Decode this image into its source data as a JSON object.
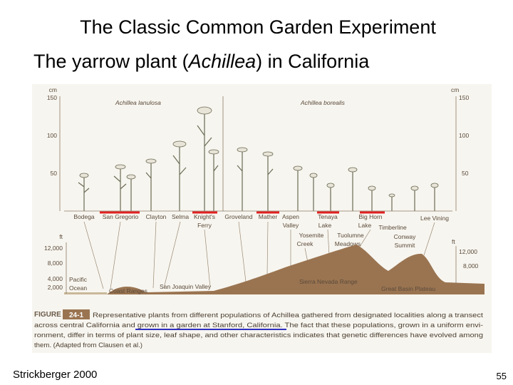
{
  "slide": {
    "title": "The Classic Common Garden Experiment",
    "subtitle": [
      "The yarrow plant (",
      "Achillea",
      ") in California"
    ],
    "figure": {
      "species": [
        "Achillea lanulosa",
        "Achillea borealis"
      ],
      "cm_axis_left": [
        "cm",
        "150",
        "100",
        "50"
      ],
      "cm_axis_right": [
        "cm",
        "150",
        "100",
        "50"
      ],
      "localities": [
        [
          "Bodega"
        ],
        [
          "San Gregorio"
        ],
        [
          "Clayton"
        ],
        [
          "Selma"
        ],
        [
          "Knight's",
          "Ferry"
        ],
        [
          "Groveland"
        ],
        [
          "Mather"
        ],
        [
          "Aspen",
          "Valley"
        ],
        [
          "Tenaya",
          "Lake"
        ],
        [
          "Big Horn",
          "Lake"
        ],
        [
          "Timberline"
        ],
        [
          "Lee Vining"
        ],
        [
          "Yosemite",
          "Creek"
        ],
        [
          "Tuolumne",
          "Meadows"
        ],
        [
          "Conway",
          "Summit"
        ]
      ],
      "ft_axis_left": [
        "ft",
        "12,000",
        "8,000",
        "4,000",
        "2,000"
      ],
      "ft_axis_right": [
        "ft",
        "12,000",
        "8,000"
      ],
      "regions": [
        [
          "Pacific",
          "Ocean"
        ],
        [
          "Coast Ranges"
        ],
        [
          "San Joaquin Valley"
        ],
        [
          "Sierra Nevada Range"
        ],
        [
          "Great Basin Plateau"
        ]
      ],
      "caption": {
        "label": "FIGURE",
        "number": "24-1",
        "lines": [
          [
            "Representative plants from different populations of Achillea gathered from designated localities along a transect"
          ],
          [
            "across central California and ",
            "grown in a garden at Stanford, California.",
            " The fact that these populations, grown in a uniform envi-"
          ],
          [
            "ronment, differ in terms of plant size, leaf shape, and other characteristics indicates that genetic differences have evolved among"
          ],
          [
            "them. (Adapted from Clausen et al.)"
          ]
        ]
      }
    },
    "footer": {
      "source": "Strickberger 2000",
      "page": "55"
    }
  }
}
